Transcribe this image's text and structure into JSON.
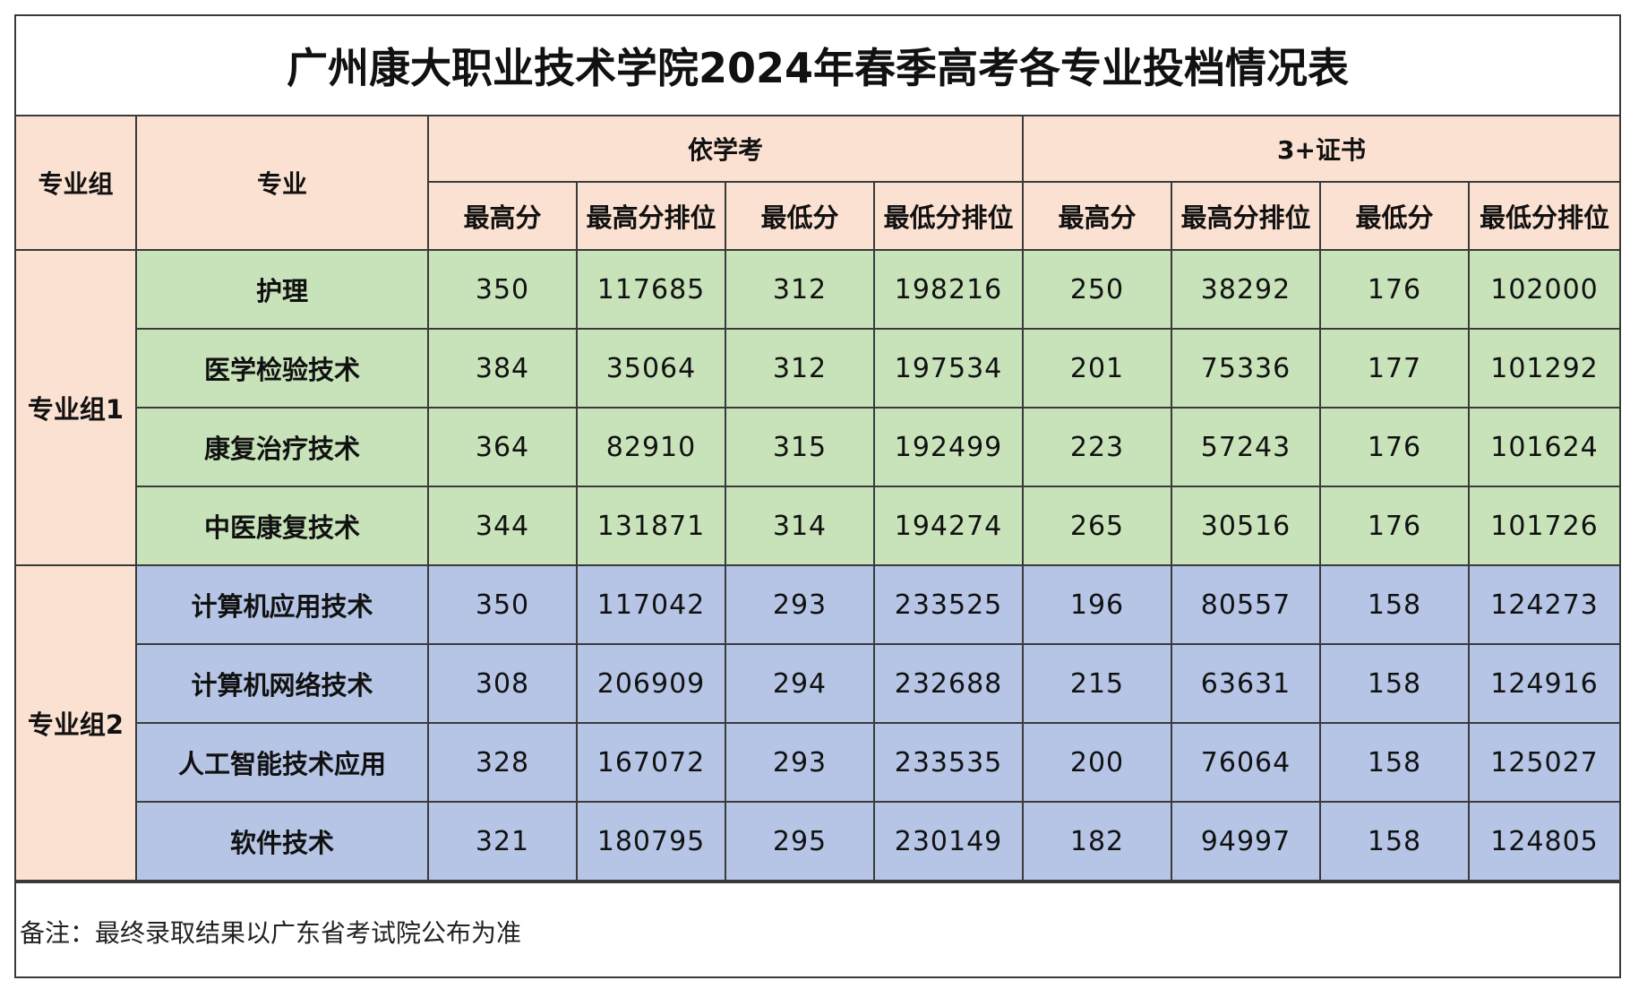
{
  "title": "广州康大职业技术学院2024年春季高考各专业投档情况表",
  "header": {
    "group_col": "专业组",
    "major_col": "专业",
    "section_a": "依学考",
    "section_b": "3+证书",
    "sub_cols": [
      "最高分",
      "最高分排位",
      "最低分",
      "最低分排位",
      "最高分",
      "最高分排位",
      "最低分",
      "最低分排位"
    ]
  },
  "groups": [
    {
      "name": "专业组1",
      "color": "#c8e3ba",
      "rows": [
        {
          "major": "护理",
          "values": [
            "350",
            "117685",
            "312",
            "198216",
            "250",
            "38292",
            "176",
            "102000"
          ]
        },
        {
          "major": "医学检验技术",
          "values": [
            "384",
            "35064",
            "312",
            "197534",
            "201",
            "75336",
            "177",
            "101292"
          ]
        },
        {
          "major": "康复治疗技术",
          "values": [
            "364",
            "82910",
            "315",
            "192499",
            "223",
            "57243",
            "176",
            "101624"
          ]
        },
        {
          "major": "中医康复技术",
          "values": [
            "344",
            "131871",
            "314",
            "194274",
            "265",
            "30516",
            "176",
            "101726"
          ]
        }
      ]
    },
    {
      "name": "专业组2",
      "color": "#b6c5e6",
      "rows": [
        {
          "major": "计算机应用技术",
          "values": [
            "350",
            "117042",
            "293",
            "233525",
            "196",
            "80557",
            "158",
            "124273"
          ]
        },
        {
          "major": "计算机网络技术",
          "values": [
            "308",
            "206909",
            "294",
            "232688",
            "215",
            "63631",
            "158",
            "124916"
          ]
        },
        {
          "major": "人工智能技术应用",
          "values": [
            "328",
            "167072",
            "293",
            "233535",
            "200",
            "76064",
            "158",
            "125027"
          ]
        },
        {
          "major": "软件技术",
          "values": [
            "321",
            "180795",
            "295",
            "230149",
            "182",
            "94997",
            "158",
            "124805"
          ]
        }
      ]
    }
  ],
  "note": "备注：最终录取结果以广东省考试院公布为准",
  "colors": {
    "header_bg": "#fbe1d1",
    "border": "#3a3a3a"
  }
}
